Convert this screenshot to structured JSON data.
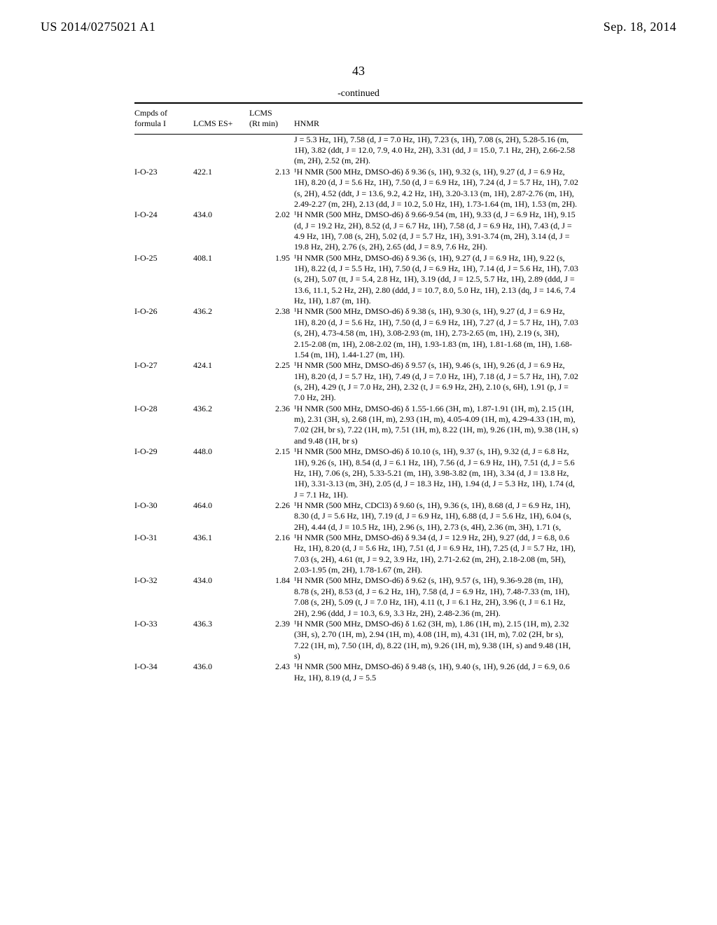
{
  "header": {
    "left": "US 2014/0275021 A1",
    "right": "Sep. 18, 2014"
  },
  "page_number": "43",
  "continued_label": "-continued",
  "columns": {
    "cmpd_line1": "Cmpds of",
    "cmpd_line2": "formula I",
    "es": "LCMS ES+",
    "rt_line1": "LCMS",
    "rt_line2": "(Rt min)",
    "hnmr": "HNMR"
  },
  "pre_row_nmr": "J = 5.3 Hz, 1H), 7.58 (d, J = 7.0 Hz, 1H), 7.23 (s, 1H), 7.08 (s, 2H), 5.28-5.16 (m, 1H), 3.82 (ddt, J = 12.0, 7.9, 4.0 Hz, 2H), 3.31 (dd, J = 15.0, 7.1 Hz, 2H), 2.66-2.58 (m, 2H), 2.52 (m, 2H).",
  "rows": [
    {
      "cmpd": "I-O-23",
      "es": "422.1",
      "rt": "2.13",
      "nmr": "¹H NMR (500 MHz, DMSO-d6) δ 9.36 (s, 1H), 9.32 (s, 1H), 9.27 (d, J = 6.9 Hz, 1H), 8.20 (d, J = 5.6 Hz, 1H), 7.50 (d, J = 6.9 Hz, 1H), 7.24 (d, J = 5.7 Hz, 1H), 7.02 (s, 2H), 4.52 (ddt, J = 13.6, 9.2, 4.2 Hz, 1H), 3.20-3.13 (m, 1H), 2.87-2.76 (m, 1H), 2.49-2.27 (m, 2H), 2.13 (dd, J = 10.2, 5.0 Hz, 1H), 1.73-1.64 (m, 1H), 1.53 (m, 2H)."
    },
    {
      "cmpd": "I-O-24",
      "es": "434.0",
      "rt": "2.02",
      "nmr": "¹H NMR (500 MHz, DMSO-d6) δ 9.66-9.54 (m, 1H), 9.33 (d, J = 6.9 Hz, 1H), 9.15 (d, J = 19.2 Hz, 2H), 8.52 (d, J = 6.7 Hz, 1H), 7.58 (d, J = 6.9 Hz, 1H), 7.43 (d, J = 4.9 Hz, 1H), 7.08 (s, 2H), 5.02 (d, J = 5.7 Hz, 1H), 3.91-3.74 (m, 2H), 3.14 (d, J = 19.8 Hz, 2H), 2.76 (s, 2H), 2.65 (dd, J = 8.9, 7.6 Hz, 2H)."
    },
    {
      "cmpd": "I-O-25",
      "es": "408.1",
      "rt": "1.95",
      "nmr": "¹H NMR (500 MHz, DMSO-d6) δ 9.36 (s, 1H), 9.27 (d, J = 6.9 Hz, 1H), 9.22 (s, 1H), 8.22 (d, J = 5.5 Hz, 1H), 7.50 (d, J = 6.9 Hz, 1H), 7.14 (d, J = 5.6 Hz, 1H), 7.03 (s, 2H), 5.07 (tt, J = 5.4, 2.8 Hz, 1H), 3.19 (dd, J = 12.5, 5.7 Hz, 1H), 2.89 (ddd, J = 13.6, 11.1, 5.2 Hz, 2H), 2.80 (ddd, J = 10.7, 8.0, 5.0 Hz, 1H), 2.13 (dq, J = 14.6, 7.4 Hz, 1H), 1.87 (m, 1H)."
    },
    {
      "cmpd": "I-O-26",
      "es": "436.2",
      "rt": "2.38",
      "nmr": "¹H NMR (500 MHz, DMSO-d6) δ 9.38 (s, 1H), 9.30 (s, 1H), 9.27 (d, J = 6.9 Hz, 1H), 8.20 (d, J = 5.6 Hz, 1H), 7.50 (d, J = 6.9 Hz, 1H), 7.27 (d, J = 5.7 Hz, 1H), 7.03 (s, 2H), 4.73-4.58 (m, 1H), 3.08-2.93 (m, 1H), 2.73-2.65 (m, 1H), 2.19 (s, 3H), 2.15-2.08 (m, 1H), 2.08-2.02 (m, 1H), 1.93-1.83 (m, 1H), 1.81-1.68 (m, 1H), 1.68-1.54 (m, 1H), 1.44-1.27 (m, 1H)."
    },
    {
      "cmpd": "I-O-27",
      "es": "424.1",
      "rt": "2.25",
      "nmr": "¹H NMR (500 MHz, DMSO-d6) δ 9.57 (s, 1H), 9.46 (s, 1H), 9.26 (d, J = 6.9 Hz, 1H), 8.20 (d, J = 5.7 Hz, 1H), 7.49 (d, J = 7.0 Hz, 1H), 7.18 (d, J = 5.7 Hz, 1H), 7.02 (s, 2H), 4.29 (t, J = 7.0 Hz, 2H), 2.32 (t, J = 6.9 Hz, 2H), 2.10 (s, 6H), 1.91 (p, J = 7.0 Hz, 2H)."
    },
    {
      "cmpd": "I-O-28",
      "es": "436.2",
      "rt": "2.36",
      "nmr": "¹H NMR (500 MHz, DMSO-d6) δ 1.55-1.66 (3H, m), 1.87-1.91 (1H, m), 2.15 (1H, m), 2.31 (3H, s), 2.68 (1H, m), 2.93 (1H, m), 4.05-4.09 (1H, m), 4.29-4.33 (1H, m), 7.02 (2H, br s), 7.22 (1H, m), 7.51 (1H, m), 8.22 (1H, m), 9.26 (1H, m), 9.38 (1H, s) and 9.48 (1H, br s)"
    },
    {
      "cmpd": "I-O-29",
      "es": "448.0",
      "rt": "2.15",
      "nmr": "¹H NMR (500 MHz, DMSO-d6) δ 10.10 (s, 1H), 9.37 (s, 1H), 9.32 (d, J = 6.8 Hz, 1H), 9.26 (s, 1H), 8.54 (d, J = 6.1 Hz, 1H), 7.56 (d, J = 6.9 Hz, 1H), 7.51 (d, J = 5.6 Hz, 1H), 7.06 (s, 2H), 5.33-5.21 (m, 1H), 3.98-3.82 (m, 1H), 3.34 (d, J = 13.8 Hz, 1H), 3.31-3.13 (m, 3H), 2.05 (d, J = 18.3 Hz, 1H), 1.94 (d, J = 5.3 Hz, 1H), 1.74 (d, J = 7.1 Hz, 1H)."
    },
    {
      "cmpd": "I-O-30",
      "es": "464.0",
      "rt": "2.26",
      "nmr": "¹H NMR (500 MHz, CDCl3) δ 9.60 (s, 1H), 9.36 (s, 1H), 8.68 (d, J = 6.9 Hz, 1H), 8.30 (d, J = 5.6 Hz, 1H), 7.19 (d, J = 6.9 Hz, 1H), 6.88 (d, J = 5.6 Hz, 1H), 6.04 (s, 2H), 4.44 (d, J = 10.5 Hz, 1H), 2.96 (s, 1H), 2.73 (s, 4H), 2.36 (m, 3H), 1.71 (s,"
    },
    {
      "cmpd": "I-O-31",
      "es": "436.1",
      "rt": "2.16",
      "nmr": "¹H NMR (500 MHz, DMSO-d6) δ 9.34 (d, J = 12.9 Hz, 2H), 9.27 (dd, J = 6.8, 0.6 Hz, 1H), 8.20 (d, J = 5.6 Hz, 1H), 7.51 (d, J = 6.9 Hz, 1H), 7.25 (d, J = 5.7 Hz, 1H), 7.03 (s, 2H), 4.61 (tt, J = 9.2, 3.9 Hz, 1H), 2.71-2.62 (m, 2H), 2.18-2.08 (m, 5H), 2.03-1.95 (m, 2H), 1.78-1.67 (m, 2H)."
    },
    {
      "cmpd": "I-O-32",
      "es": "434.0",
      "rt": "1.84",
      "nmr": "¹H NMR (500 MHz, DMSO-d6) δ 9.62 (s, 1H), 9.57 (s, 1H), 9.36-9.28 (m, 1H), 8.78 (s, 2H), 8.53 (d, J = 6.2 Hz, 1H), 7.58 (d, J = 6.9 Hz, 1H), 7.48-7.33 (m, 1H), 7.08 (s, 2H), 5.09 (t, J = 7.0 Hz, 1H), 4.11 (t, J = 6.1 Hz, 2H), 3.96 (t, J = 6.1 Hz, 2H), 2.96 (ddd, J = 10.3, 6.9, 3.3 Hz, 2H), 2.48-2.36 (m, 2H)."
    },
    {
      "cmpd": "I-O-33",
      "es": "436.3",
      "rt": "2.39",
      "nmr": "¹H NMR (500 MHz, DMSO-d6) δ 1.62 (3H, m), 1.86 (1H, m), 2.15 (1H, m), 2.32 (3H, s), 2.70 (1H, m), 2.94 (1H, m), 4.08 (1H, m), 4.31 (1H, m), 7.02 (2H, br s), 7.22 (1H, m), 7.50 (1H, d), 8.22 (1H, m), 9.26 (1H, m), 9.38 (1H, s) and 9.48 (1H, s)"
    },
    {
      "cmpd": "I-O-34",
      "es": "436.0",
      "rt": "2.43",
      "nmr": "¹H NMR (500 MHz, DMSO-d6) δ 9.48 (s, 1H), 9.40 (s, 1H), 9.26 (dd, J = 6.9, 0.6 Hz, 1H), 8.19 (d, J = 5.5"
    }
  ]
}
